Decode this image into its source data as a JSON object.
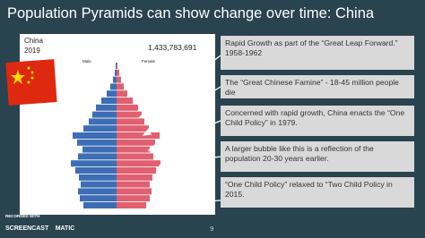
{
  "title": "Population Pyramids can show change over time: China",
  "pyramid": {
    "country": "China",
    "year": "2019",
    "population": "1,433,783,691",
    "male_label": "Male",
    "female_label": "Female",
    "male": [
      1,
      2,
      4,
      7,
      11,
      17,
      23,
      27,
      31,
      37,
      49,
      44,
      38,
      43,
      51,
      46,
      42,
      40,
      43,
      41,
      37
    ],
    "female": [
      1,
      3,
      5,
      8,
      12,
      18,
      24,
      28,
      31,
      36,
      48,
      43,
      37,
      41,
      49,
      44,
      40,
      37,
      39,
      37,
      33
    ],
    "male_color": "#3d6db5",
    "female_color": "#e06070"
  },
  "notes": [
    "Rapid Growth as part of the “Great Leap Forward.” 1958-1962",
    "The “Great Chinese Famine” - 18-45 million people die",
    "Concerned with rapid growth, China enacts the “One Child Policy” in 1979.",
    "A larger bubble like this is a reflection of the population 20-30 years earlier.",
    "“One Child Policy” relaxed to “Two Child Policy in 2015."
  ],
  "page_number": "9",
  "watermark": {
    "top": "RECORDED WITH",
    "left": "SCREENCAST",
    "right": "MATIC"
  }
}
